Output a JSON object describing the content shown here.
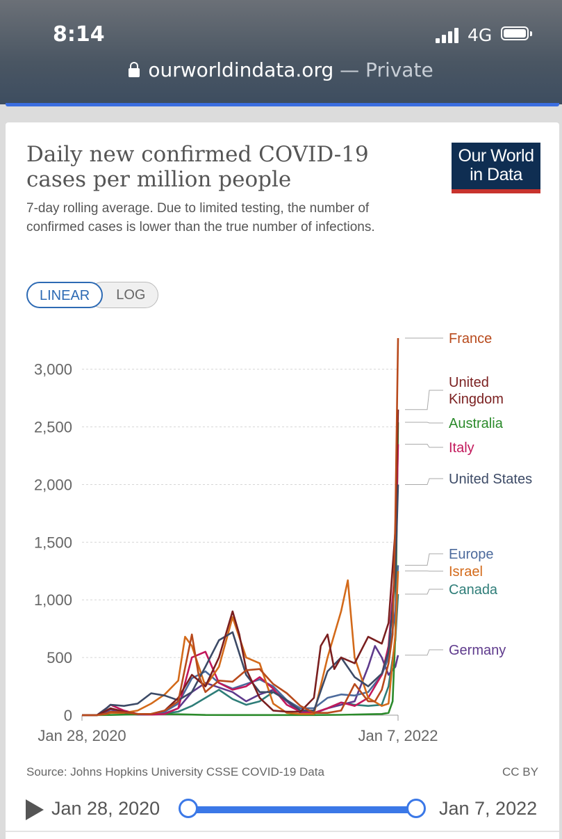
{
  "status_bar": {
    "time": "8:14",
    "network": "4G"
  },
  "browser": {
    "host": "ourworldindata.org",
    "separator": "—",
    "mode": "Private"
  },
  "card": {
    "title": "Daily new confirmed COVID-19 cases per million people",
    "subtitle": "7-day rolling average. Due to limited testing, the number of confirmed cases is lower than the true number of infections.",
    "logo": {
      "line1": "Our World",
      "line2": "in Data",
      "bg_color": "#0f2e52",
      "bar_color": "#c8332d"
    },
    "scale_toggle": {
      "linear": "LINEAR",
      "log": "LOG",
      "selected": "LINEAR"
    },
    "source": "Source: Johns Hopkins University CSSE COVID-19 Data",
    "license": "CC BY",
    "timeline": {
      "start": "Jan 28, 2020",
      "end": "Jan 7, 2022",
      "accent_color": "#3b78e7"
    }
  },
  "chart_data": {
    "type": "line",
    "title": "Daily new confirmed COVID-19 cases per million people",
    "ylim": [
      0,
      3300
    ],
    "yticks": [
      {
        "value": 0,
        "label": "0"
      },
      {
        "value": 500,
        "label": "500"
      },
      {
        "value": 1000,
        "label": "1,000"
      },
      {
        "value": 1500,
        "label": "1,500"
      },
      {
        "value": 2000,
        "label": "2,000"
      },
      {
        "value": 2500,
        "label": "2,500"
      },
      {
        "value": 3000,
        "label": "3,000"
      }
    ],
    "x_unit": "months since Jan 2020",
    "xlim": [
      0.9,
      24.2
    ],
    "xticks": [
      {
        "value": 0.9,
        "label": "Jan 28, 2020"
      },
      {
        "value": 24.2,
        "label": "Jan 7, 2022"
      }
    ],
    "grid": "horizontal dashed",
    "legend": "right, end labels",
    "series": [
      {
        "name": "France",
        "color": "#b84a1c",
        "final": 3270,
        "x": [
          0.9,
          2,
          2.7,
          3,
          4,
          5,
          6,
          7,
          8,
          9,
          9.5,
          10,
          11,
          12,
          13,
          14,
          15,
          16,
          17,
          18,
          19,
          20,
          21,
          22,
          22.5,
          23,
          23.5,
          23.8,
          24,
          24.2
        ],
        "y": [
          0,
          0,
          15,
          30,
          25,
          10,
          10,
          40,
          120,
          700,
          350,
          200,
          300,
          290,
          390,
          400,
          270,
          190,
          80,
          20,
          20,
          40,
          270,
          120,
          120,
          220,
          450,
          700,
          1700,
          3270
        ]
      },
      {
        "name": "United Kingdom",
        "color": "#7a1f1f",
        "final": 2650,
        "x": [
          0.9,
          2,
          2.7,
          3,
          4,
          5,
          6,
          7,
          8,
          9,
          10,
          11,
          12,
          12.5,
          13,
          14,
          15,
          16,
          17,
          18,
          18.5,
          19,
          19.5,
          20,
          21,
          22,
          23,
          23.5,
          24,
          24.2
        ],
        "y": [
          0,
          0,
          40,
          60,
          30,
          10,
          10,
          40,
          150,
          350,
          250,
          500,
          900,
          700,
          400,
          150,
          40,
          30,
          30,
          150,
          600,
          700,
          400,
          500,
          450,
          680,
          620,
          800,
          1600,
          2650
        ]
      },
      {
        "name": "Australia",
        "color": "#2b8a2b",
        "final": 2540,
        "x": [
          0.9,
          3,
          6,
          8,
          10,
          12,
          14,
          16,
          18,
          20,
          22,
          23,
          23.5,
          23.8,
          24,
          24.2
        ],
        "y": [
          0,
          2,
          10,
          8,
          2,
          1,
          1,
          1,
          1,
          3,
          8,
          10,
          20,
          120,
          700,
          2540
        ]
      },
      {
        "name": "Italy",
        "color": "#c2185b",
        "final": 2350,
        "x": [
          0.9,
          2,
          2.7,
          3,
          4,
          5,
          6,
          7,
          8,
          9,
          10,
          11,
          12,
          13,
          14,
          15,
          16,
          17,
          18,
          19,
          20,
          21,
          22,
          23,
          23.5,
          24,
          24.2
        ],
        "y": [
          0,
          0,
          60,
          90,
          40,
          10,
          5,
          10,
          60,
          500,
          550,
          280,
          220,
          250,
          330,
          230,
          90,
          30,
          20,
          60,
          110,
          80,
          150,
          350,
          600,
          1300,
          2350
        ]
      },
      {
        "name": "United States",
        "color": "#3c4a66",
        "final": 2000,
        "x": [
          0.9,
          2,
          2.7,
          3,
          4,
          5,
          6,
          7,
          8,
          9,
          10,
          11,
          12,
          13,
          14,
          15,
          16,
          17,
          18,
          19,
          20,
          21,
          22,
          23,
          23.5,
          24,
          24.2
        ],
        "y": [
          0,
          0,
          60,
          90,
          80,
          100,
          190,
          170,
          130,
          200,
          420,
          650,
          720,
          350,
          200,
          200,
          130,
          40,
          40,
          380,
          500,
          330,
          250,
          360,
          550,
          1200,
          2000
        ]
      },
      {
        "name": "Europe",
        "color": "#4c6a9c",
        "final": 1300,
        "x": [
          0.9,
          2,
          2.7,
          3,
          4,
          5,
          6,
          7,
          8,
          9,
          10,
          11,
          12,
          13,
          14,
          15,
          16,
          17,
          18,
          19,
          20,
          21,
          22,
          23,
          23.5,
          24,
          24.2
        ],
        "y": [
          0,
          0,
          40,
          60,
          30,
          10,
          10,
          30,
          100,
          320,
          380,
          280,
          230,
          270,
          310,
          250,
          130,
          60,
          60,
          150,
          180,
          170,
          200,
          350,
          500,
          900,
          1300
        ]
      },
      {
        "name": "Israel",
        "color": "#d36a1a",
        "final": 1250,
        "x": [
          0.9,
          2,
          2.7,
          3,
          4,
          5,
          6,
          7,
          8,
          8.5,
          9,
          10,
          11,
          12,
          13,
          14,
          15,
          16,
          17,
          18,
          19,
          20,
          20.5,
          21,
          22,
          23,
          23.5,
          24,
          24.2
        ],
        "y": [
          0,
          0,
          10,
          20,
          20,
          40,
          100,
          180,
          300,
          680,
          600,
          250,
          420,
          850,
          500,
          450,
          100,
          20,
          10,
          10,
          500,
          900,
          1170,
          500,
          150,
          80,
          100,
          700,
          1250
        ]
      },
      {
        "name": "Canada",
        "color": "#2e7d78",
        "final": 1050,
        "x": [
          0.9,
          2,
          3,
          4,
          5,
          6,
          7,
          8,
          9,
          10,
          11,
          12,
          13,
          14,
          15,
          16,
          17,
          18,
          19,
          20,
          21,
          22,
          23,
          23.5,
          24,
          24.2
        ],
        "y": [
          0,
          0,
          30,
          30,
          10,
          10,
          15,
          30,
          80,
          150,
          220,
          140,
          90,
          120,
          200,
          130,
          30,
          20,
          60,
          110,
          90,
          80,
          90,
          250,
          650,
          1050
        ]
      },
      {
        "name": "Germany",
        "color": "#5e3a8c",
        "final": 520,
        "x": [
          0.9,
          2,
          2.7,
          3,
          4,
          5,
          6,
          7,
          8,
          9,
          10,
          11,
          12,
          13,
          14,
          15,
          16,
          17,
          18,
          19,
          20,
          21,
          22,
          22.5,
          23,
          23.5,
          24,
          24.2
        ],
        "y": [
          0,
          0,
          30,
          50,
          20,
          5,
          5,
          15,
          60,
          200,
          280,
          240,
          200,
          120,
          180,
          220,
          120,
          20,
          15,
          60,
          90,
          120,
          420,
          600,
          500,
          350,
          420,
          520
        ]
      }
    ]
  }
}
